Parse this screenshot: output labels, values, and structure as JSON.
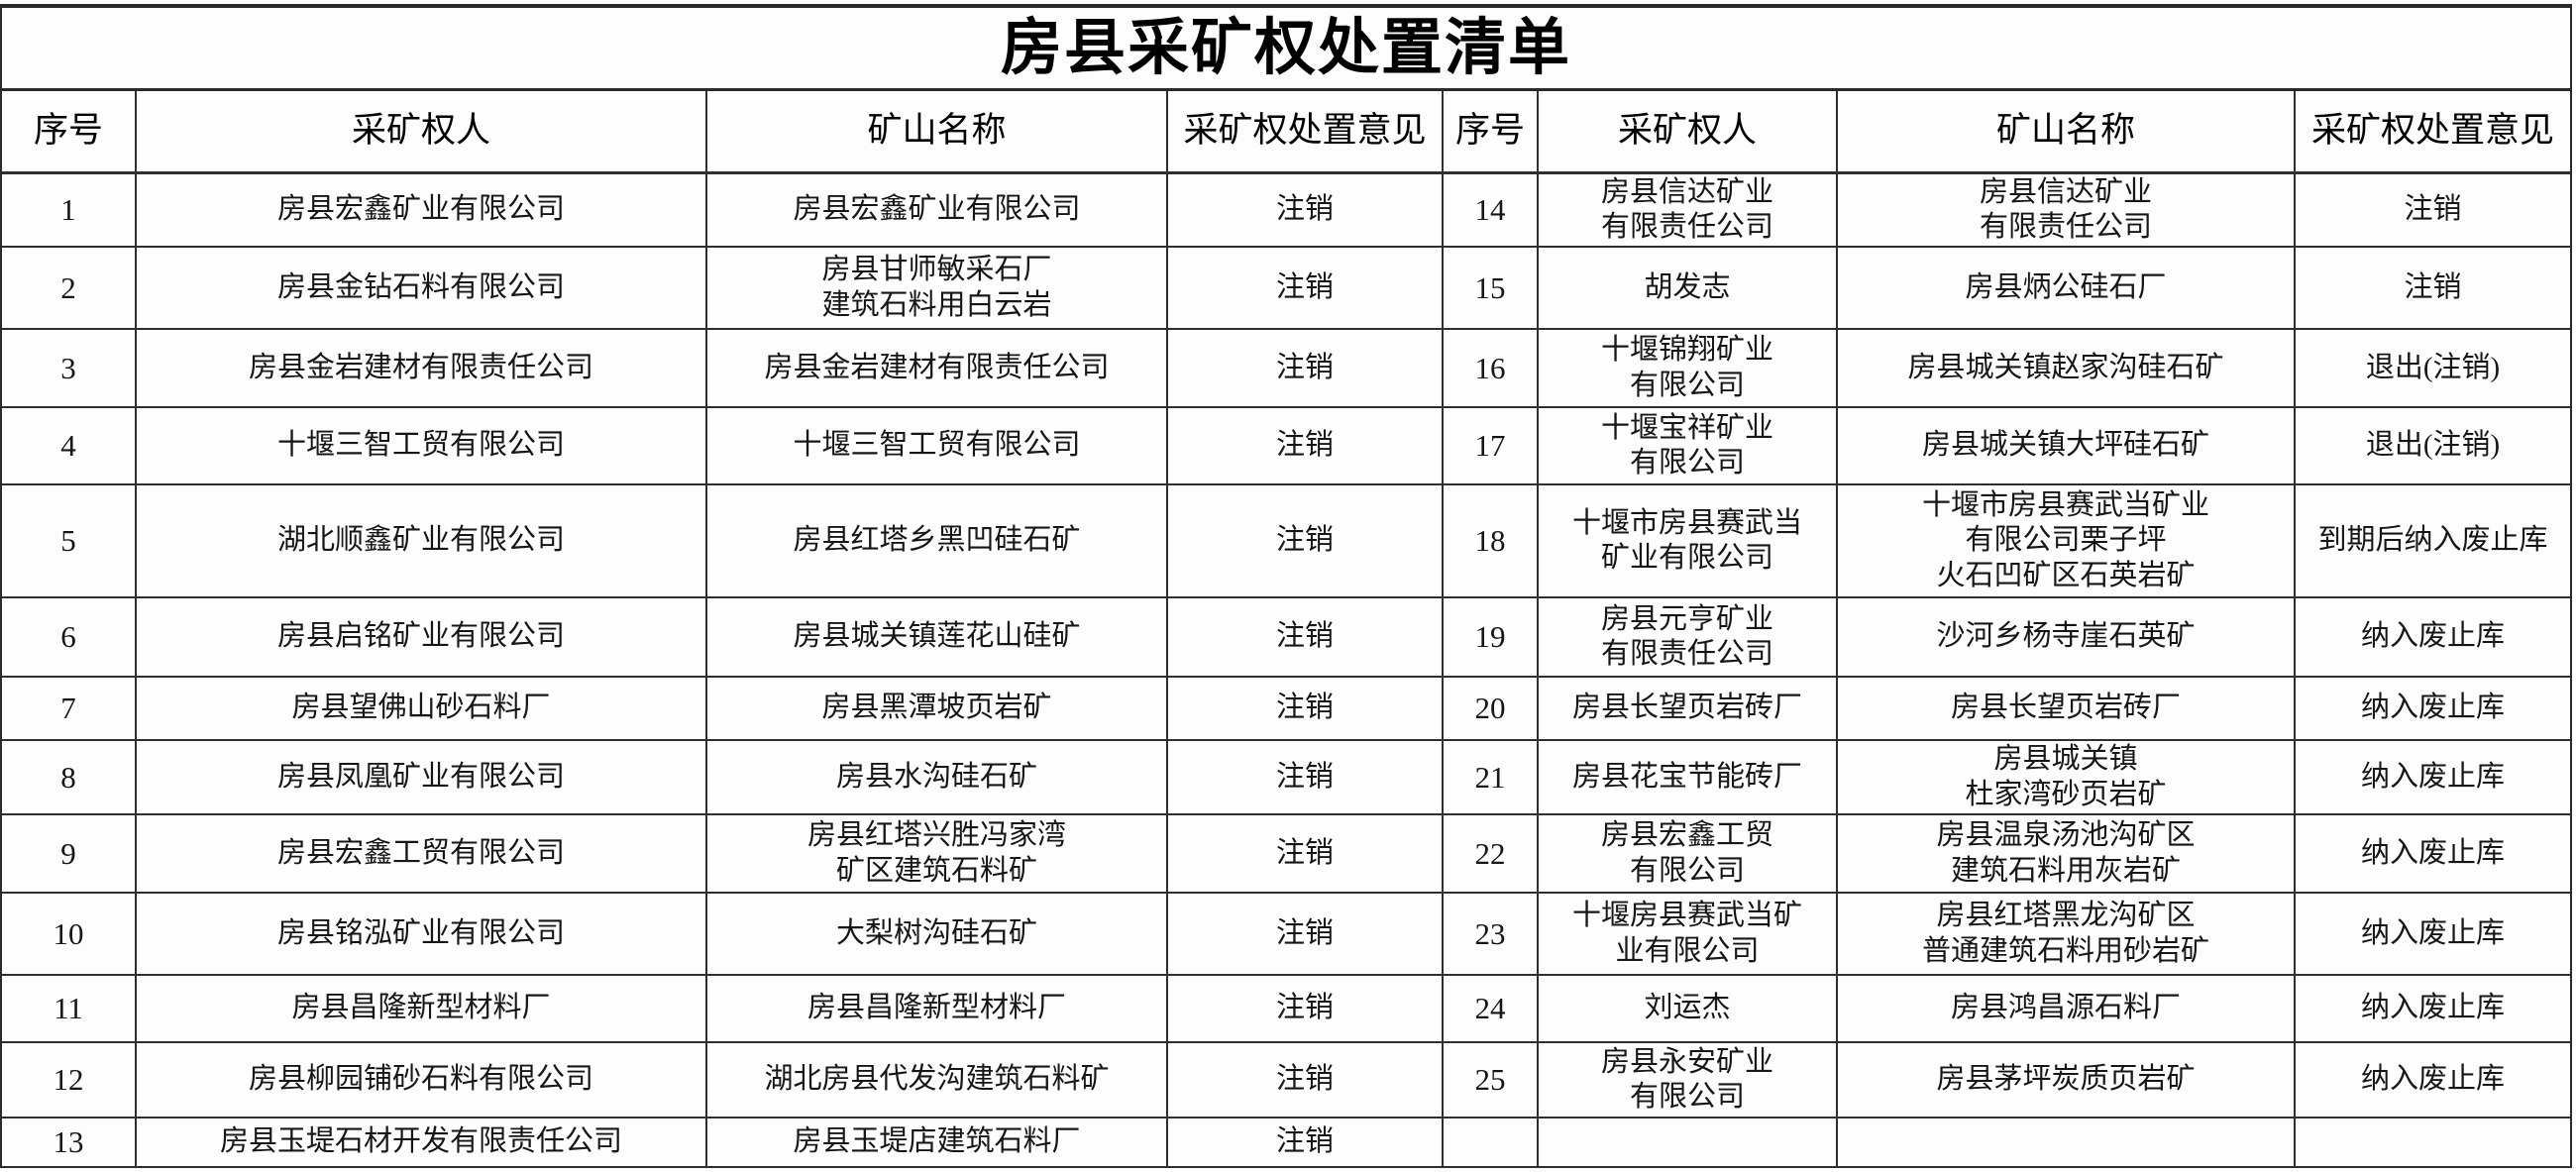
{
  "title": "房县采矿权处置清单",
  "table": {
    "column_headers": [
      "序号",
      "采矿权人",
      "矿山名称",
      "采矿权处置意见"
    ],
    "left_rows": [
      {
        "no": "1",
        "owner": "房县宏鑫矿业有限公司",
        "mine": "房县宏鑫矿业有限公司",
        "opinion": "注销"
      },
      {
        "no": "2",
        "owner": "房县金钻石料有限公司",
        "mine": "房县甘师敏采石厂\n建筑石料用白云岩",
        "opinion": "注销"
      },
      {
        "no": "3",
        "owner": "房县金岩建材有限责任公司",
        "mine": "房县金岩建材有限责任公司",
        "opinion": "注销"
      },
      {
        "no": "4",
        "owner": "十堰三智工贸有限公司",
        "mine": "十堰三智工贸有限公司",
        "opinion": "注销"
      },
      {
        "no": "5",
        "owner": "湖北顺鑫矿业有限公司",
        "mine": "房县红塔乡黑凹硅石矿",
        "opinion": "注销"
      },
      {
        "no": "6",
        "owner": "房县启铭矿业有限公司",
        "mine": "房县城关镇莲花山硅矿",
        "opinion": "注销"
      },
      {
        "no": "7",
        "owner": "房县望佛山砂石料厂",
        "mine": "房县黑潭坡页岩矿",
        "opinion": "注销"
      },
      {
        "no": "8",
        "owner": "房县凤凰矿业有限公司",
        "mine": "房县水沟硅石矿",
        "opinion": "注销"
      },
      {
        "no": "9",
        "owner": "房县宏鑫工贸有限公司",
        "mine": "房县红塔兴胜冯家湾\n矿区建筑石料矿",
        "opinion": "注销"
      },
      {
        "no": "10",
        "owner": "房县铭泓矿业有限公司",
        "mine": "大梨树沟硅石矿",
        "opinion": "注销"
      },
      {
        "no": "11",
        "owner": "房县昌隆新型材料厂",
        "mine": "房县昌隆新型材料厂",
        "opinion": "注销"
      },
      {
        "no": "12",
        "owner": "房县柳园铺砂石料有限公司",
        "mine": "湖北房县代发沟建筑石料矿",
        "opinion": "注销"
      },
      {
        "no": "13",
        "owner": "房县玉堤石材开发有限责任公司",
        "mine": "房县玉堤店建筑石料厂",
        "opinion": "注销"
      }
    ],
    "right_rows": [
      {
        "no": "14",
        "owner": "房县信达矿业\n有限责任公司",
        "mine": "房县信达矿业\n有限责任公司",
        "opinion": "注销"
      },
      {
        "no": "15",
        "owner": "胡发志",
        "mine": "房县炳公硅石厂",
        "opinion": "注销"
      },
      {
        "no": "16",
        "owner": "十堰锦翔矿业\n有限公司",
        "mine": "房县城关镇赵家沟硅石矿",
        "opinion": "退出(注销)"
      },
      {
        "no": "17",
        "owner": "十堰宝祥矿业\n有限公司",
        "mine": "房县城关镇大坪硅石矿",
        "opinion": "退出(注销)"
      },
      {
        "no": "18",
        "owner": "十堰市房县赛武当\n矿业有限公司",
        "mine": "十堰市房县赛武当矿业\n有限公司栗子坪\n火石凹矿区石英岩矿",
        "opinion": "到期后纳入废止库"
      },
      {
        "no": "19",
        "owner": "房县元亨矿业\n有限责任公司",
        "mine": "沙河乡杨寺崖石英矿",
        "opinion": "纳入废止库"
      },
      {
        "no": "20",
        "owner": "房县长望页岩砖厂",
        "mine": "房县长望页岩砖厂",
        "opinion": "纳入废止库"
      },
      {
        "no": "21",
        "owner": "房县花宝节能砖厂",
        "mine": "房县城关镇\n杜家湾砂页岩矿",
        "opinion": "纳入废止库"
      },
      {
        "no": "22",
        "owner": "房县宏鑫工贸\n有限公司",
        "mine": "房县温泉汤池沟矿区\n建筑石料用灰岩矿",
        "opinion": "纳入废止库"
      },
      {
        "no": "23",
        "owner": "十堰房县赛武当矿\n业有限公司",
        "mine": "房县红塔黑龙沟矿区\n普通建筑石料用砂岩矿",
        "opinion": "纳入废止库"
      },
      {
        "no": "24",
        "owner": "刘运杰",
        "mine": "房县鸿昌源石料厂",
        "opinion": "纳入废止库"
      },
      {
        "no": "25",
        "owner": "房县永安矿业\n有限公司",
        "mine": "房县茅坪炭质页岩矿",
        "opinion": "纳入废止库"
      },
      {
        "no": "",
        "owner": "",
        "mine": "",
        "opinion": ""
      }
    ]
  }
}
